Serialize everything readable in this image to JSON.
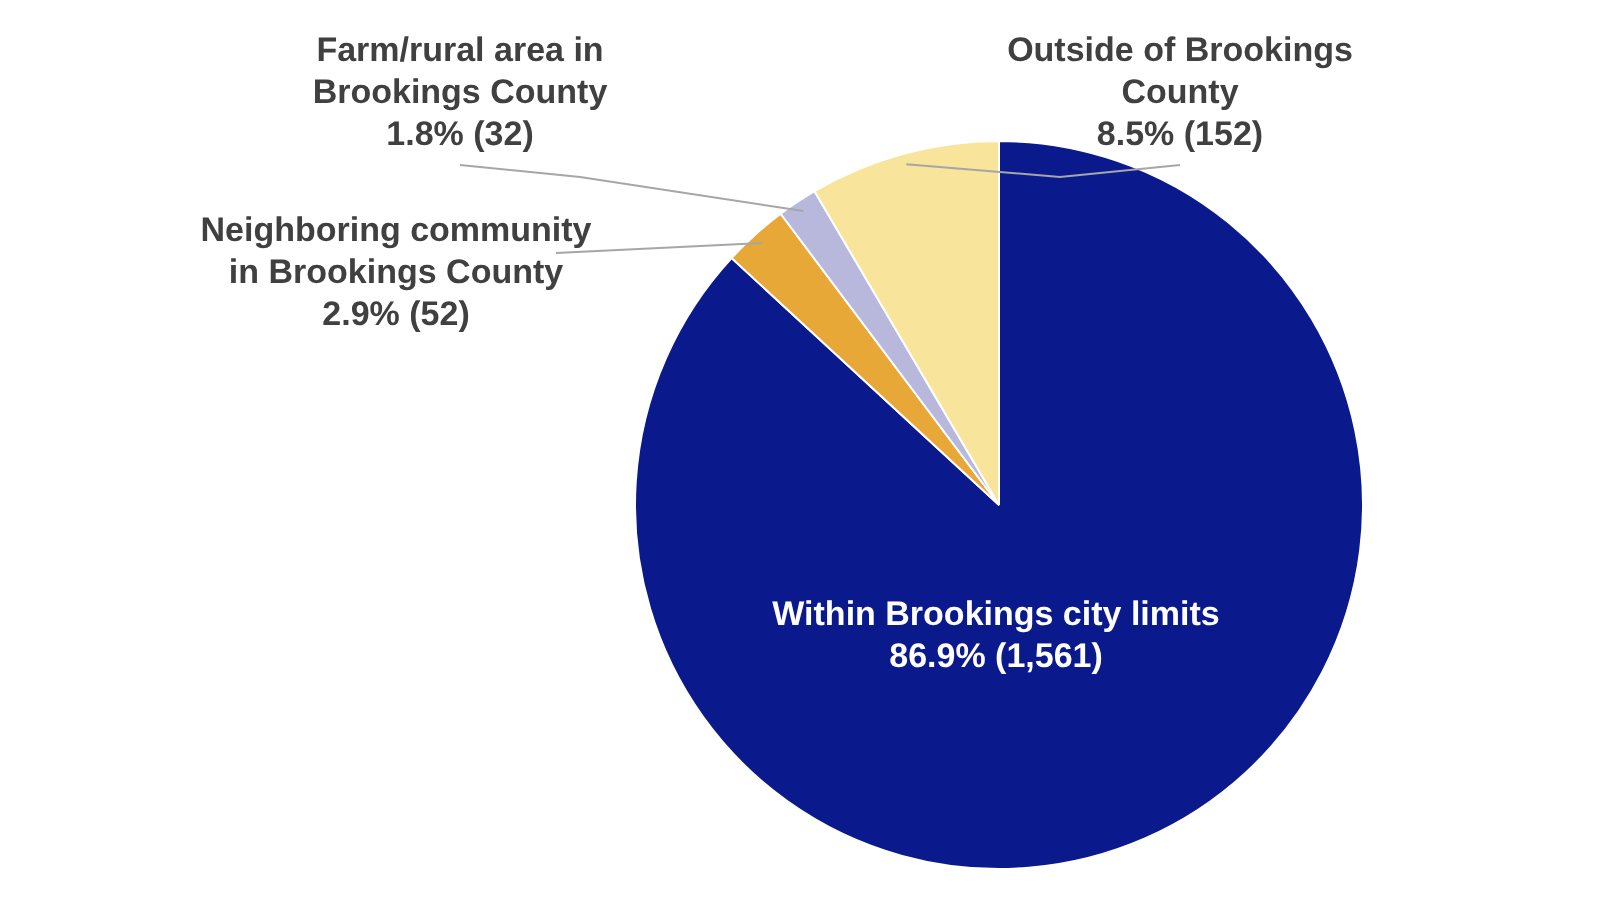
{
  "chart_data": {
    "type": "pie",
    "categories": [
      "Within Brookings city limits",
      "Neighboring community in Brookings County",
      "Farm/rural area in Brookings County",
      "Outside of Brookings County"
    ],
    "values": [
      1561,
      52,
      32,
      152
    ],
    "value_labels": [
      "86.9% (1,561)",
      "2.9% (52)",
      "1.8% (32)",
      "8.5% (152)"
    ],
    "colors": [
      "#0a1a8c",
      "#e8a838",
      "#b8b8dc",
      "#f8e49a"
    ],
    "legend": false
  }
}
